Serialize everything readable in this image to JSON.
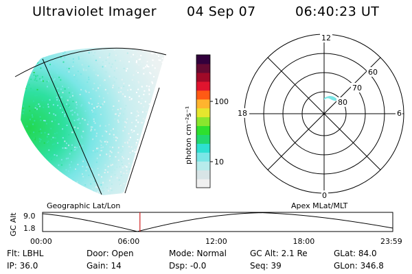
{
  "header": {
    "title": "Ultraviolet Imager",
    "date": "04 Sep 07",
    "time": "06:40:23 UT"
  },
  "image_panel": {
    "projection_label": "Geographic Lat/Lon"
  },
  "colorbar": {
    "unit_label": "photon cm⁻²s⁻¹",
    "ticks": [
      "100",
      "10"
    ],
    "scale": "log",
    "colors": [
      "#f0f0f0",
      "#d8e4e6",
      "#b8ecec",
      "#7ae6e6",
      "#2ee0d2",
      "#22d870",
      "#2ee02e",
      "#8ae62e",
      "#e6e62e",
      "#ffb42e",
      "#ff5a14",
      "#e0142e",
      "#a00a28",
      "#640a32",
      "#32003c"
    ]
  },
  "polar_plot": {
    "projection_label": "Apex MLat/MLT",
    "mlt_labels": {
      "top": "12",
      "left": "18",
      "right": "6",
      "bottom": "0"
    },
    "lat_labels": [
      "60",
      "70",
      "80"
    ]
  },
  "altitude_plot": {
    "y_label": "GC Alt",
    "y_ticks": [
      "9.0",
      "1.8"
    ],
    "x_ticks": [
      "00:00",
      "06:00",
      "12:00",
      "18:00",
      "23:59"
    ],
    "current_time_fraction": 0.278
  },
  "info": {
    "flt": "Flt: LBHL",
    "door": "Door: Open",
    "mode": "Mode: Normal",
    "gc_alt": "GC Alt: 2.1 Re",
    "glat": "GLat:  84.0",
    "ip": "IP: 36.0",
    "gain": "Gain: 14",
    "dsp": "Dsp:    -0.0",
    "seq": "Seq: 39",
    "glon": "GLon: 346.8"
  },
  "accent_colors": {
    "current_time_marker": "#d02020",
    "arc_fill": "#7ae6e6"
  }
}
